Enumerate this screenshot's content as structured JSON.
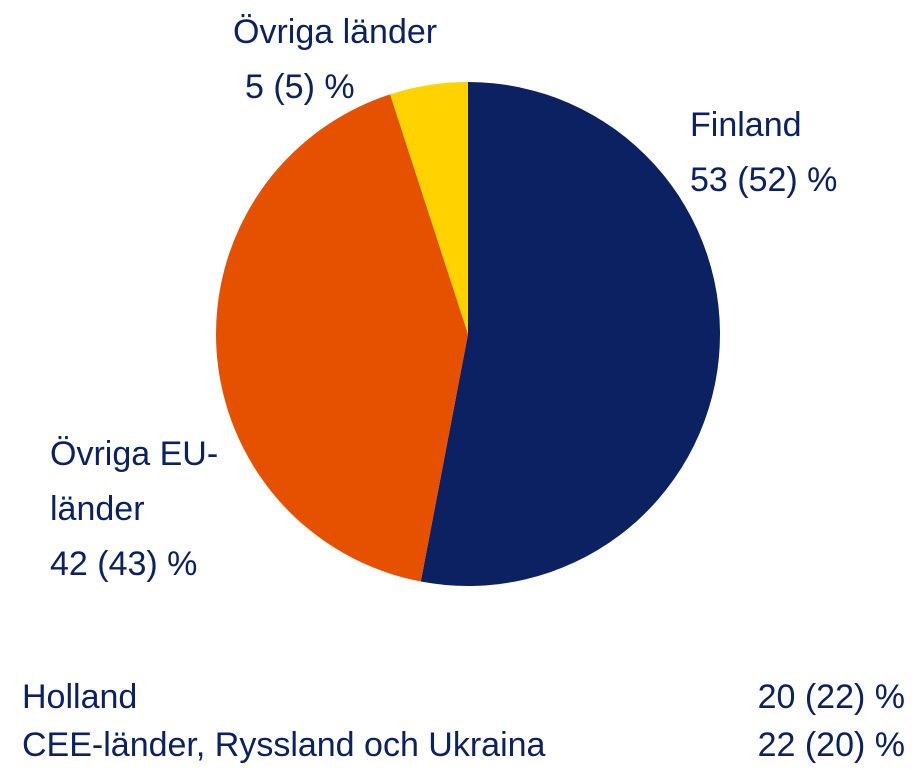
{
  "chart_data": {
    "type": "pie",
    "categories": [
      "Finland",
      "Övriga EU-länder",
      "Övriga länder"
    ],
    "values": [
      53,
      42,
      5
    ],
    "value_labels": [
      "53 (52) %",
      "42 (43) %",
      "5 (5) %"
    ],
    "colors": [
      "#0b2161",
      "#e65100",
      "#ffd200"
    ]
  },
  "table": {
    "rows": [
      [
        "Holland",
        "20 (22) %"
      ],
      [
        "CEE-länder, Ryssland och Ukraina",
        "22 (20) %"
      ]
    ]
  }
}
